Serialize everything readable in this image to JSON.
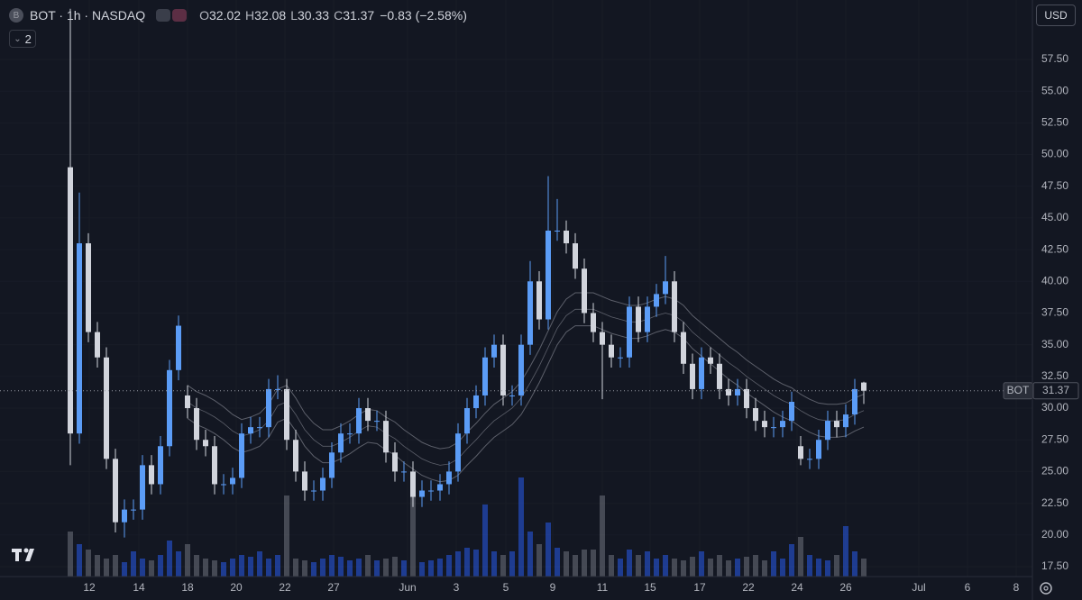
{
  "chart_data": {
    "type": "candlestick",
    "title": "BOT · 1h · NASDAQ",
    "logo": "B",
    "indicators": "2",
    "currency": "USD",
    "ohlc_labels": [
      "O",
      "H",
      "L",
      "C"
    ],
    "change": {
      "value": -0.83,
      "label": "−0.83"
    },
    "change_pct": {
      "value": -2.58,
      "label": "(−2.58%)"
    },
    "price_tag": "BOT",
    "open": [
      49,
      28,
      43,
      36,
      34,
      26,
      21,
      22,
      22,
      25.5,
      24,
      27,
      33,
      31,
      30,
      27.5,
      27,
      24,
      24,
      24.5,
      28,
      28.5,
      28.5,
      31.5,
      31.5,
      27.5,
      25,
      23.5,
      23.5,
      24.5,
      26.5,
      28,
      28,
      30,
      29,
      29,
      26.5,
      25,
      25,
      23,
      23.5,
      23.5,
      24,
      25,
      28,
      30,
      31,
      34,
      35,
      31,
      31,
      35,
      40,
      37,
      44,
      44,
      43,
      41,
      37.5,
      36,
      35,
      34,
      34,
      38,
      36,
      38,
      39,
      40,
      36,
      33.5,
      31.5,
      34,
      33.5,
      31.5,
      31,
      31.5,
      30,
      29,
      28.5,
      28.5,
      29,
      27,
      26,
      26,
      27.5,
      29,
      28.5,
      29.5,
      32.02
    ],
    "high": [
      61.5,
      47,
      43.8,
      36.8,
      34.8,
      26.8,
      22.8,
      22.8,
      26.3,
      26.3,
      27.8,
      33.8,
      37.3,
      31.8,
      30.8,
      28.3,
      27.8,
      24.8,
      25.3,
      28.8,
      29.3,
      29.3,
      32.3,
      32.6,
      32.3,
      28.3,
      25.8,
      24.3,
      25.3,
      27.3,
      28.8,
      28.8,
      30.8,
      30.8,
      29.8,
      29.8,
      27.3,
      25.8,
      25.8,
      24.3,
      24.3,
      24.8,
      25.8,
      28.8,
      30.8,
      31.8,
      34.8,
      35.8,
      35.8,
      31.8,
      35.8,
      41.6,
      40.8,
      48.3,
      46.5,
      44.8,
      43.8,
      41.8,
      38.3,
      36.8,
      35.8,
      34.8,
      38.8,
      38.8,
      38.8,
      39.8,
      42,
      40.8,
      36.8,
      34.3,
      34.8,
      34.8,
      34.3,
      32.3,
      32.3,
      32.3,
      30.8,
      29.8,
      29.3,
      29.8,
      31.3,
      27.8,
      26.8,
      28.3,
      29.8,
      29.8,
      30.3,
      32.3,
      32.08
    ],
    "low": [
      25.5,
      27.2,
      35.2,
      33.2,
      25.2,
      20.2,
      19.8,
      21.2,
      21.2,
      23.2,
      23.2,
      26.2,
      32.2,
      29.2,
      26.7,
      26.2,
      23.2,
      23.2,
      23.2,
      23.7,
      27.2,
      27.7,
      27.7,
      30.7,
      26.7,
      24.2,
      22.7,
      22.7,
      22.7,
      23.7,
      25.7,
      27.2,
      27.2,
      28.2,
      28.2,
      25.7,
      24.2,
      24.2,
      22.2,
      22.2,
      22.7,
      22.7,
      23.2,
      24.2,
      27.2,
      29.2,
      30.2,
      33.2,
      30.2,
      30.2,
      30.2,
      34.2,
      36.2,
      36.2,
      43.2,
      42.2,
      40.2,
      36.7,
      35.2,
      30.7,
      33.2,
      33.2,
      33.2,
      35.2,
      35.2,
      37.2,
      38.2,
      35.2,
      32.7,
      30.7,
      30.7,
      32.7,
      30.7,
      30.2,
      30.2,
      29.2,
      28.2,
      27.7,
      27.7,
      27.7,
      28.2,
      25.5,
      25.2,
      25.2,
      26.7,
      27.7,
      27.7,
      28.7,
      30.33
    ],
    "close": [
      28,
      43,
      36,
      34,
      26,
      21,
      22,
      22,
      25.5,
      24,
      27,
      33,
      36.5,
      30,
      27.5,
      27,
      24,
      24,
      24.5,
      28,
      28.5,
      28.5,
      31.5,
      31.5,
      27.5,
      25,
      23.5,
      23.5,
      24.5,
      26.5,
      28,
      28,
      30,
      29,
      29,
      26.5,
      25,
      25,
      23,
      23.5,
      23.5,
      24,
      25,
      28,
      30,
      31,
      34,
      35,
      31,
      31,
      35,
      40,
      37,
      44,
      44,
      43,
      41,
      37.5,
      36,
      35,
      34,
      34,
      38,
      36,
      38,
      39,
      40,
      36,
      33.5,
      31.5,
      34,
      33.5,
      31.5,
      31,
      31.5,
      30,
      29,
      28.5,
      28.5,
      29,
      30.5,
      26,
      26,
      27.5,
      29,
      28.5,
      29.5,
      31.5,
      31.37
    ],
    "volume": [
      25,
      18,
      15,
      12,
      10,
      12,
      8,
      14,
      10,
      9,
      12,
      20,
      14,
      18,
      12,
      10,
      9,
      8,
      10,
      12,
      11,
      14,
      10,
      12,
      45,
      10,
      9,
      8,
      10,
      12,
      11,
      9,
      10,
      12,
      9,
      10,
      11,
      9,
      50,
      8,
      9,
      10,
      12,
      14,
      16,
      15,
      40,
      14,
      12,
      14,
      55,
      25,
      18,
      30,
      16,
      14,
      12,
      15,
      15,
      45,
      12,
      10,
      15,
      12,
      14,
      10,
      12,
      10,
      9,
      11,
      14,
      10,
      12,
      9,
      10,
      11,
      12,
      9,
      14,
      10,
      18,
      22,
      12,
      10,
      9,
      12,
      28,
      14,
      10
    ],
    "y2lim": [
      0,
      100
    ],
    "envelope": {
      "band": 1.3,
      "values": [
        null,
        null,
        null,
        null,
        null,
        null,
        null,
        null,
        null,
        null,
        null,
        null,
        null,
        30.5,
        30,
        29.7,
        29.3,
        28.8,
        28.2,
        27.8,
        28,
        28.3,
        29,
        30.2,
        30.5,
        29.5,
        28.3,
        27.5,
        27,
        27,
        27.3,
        27.7,
        28.2,
        28.6,
        28.5,
        28,
        27.6,
        27,
        26.5,
        26,
        25.7,
        25.5,
        25.6,
        26,
        26.8,
        27.5,
        28.3,
        29,
        29.5,
        30,
        30.8,
        32,
        33.3,
        34.8,
        36.3,
        37.3,
        37.8,
        37.8,
        37.8,
        37.5,
        37.2,
        37,
        36.8,
        36.8,
        37,
        37.3,
        37.5,
        37.3,
        36.8,
        36,
        35.4,
        34.8,
        34.2,
        33.6,
        33.1,
        32.5,
        32,
        31.5,
        31,
        30.6,
        30.3,
        29.8,
        29.4,
        29.1,
        29,
        29,
        29.1,
        29.5,
        29.8
      ]
    },
    "colors": {
      "background": "#131722",
      "up": "#5b9cf6",
      "down": "#d1d4dc",
      "volume_up": "#2962ff",
      "volume_down": "#787b86",
      "envelope": "#5d606b",
      "grid": "#181c27",
      "price_line": "#9598a1"
    },
    "grid": true,
    "price_line": true,
    "xlim": [
      -7.8,
      106.7
    ],
    "xticks": [
      {
        "value": 2.1,
        "label": "12"
      },
      {
        "value": 7.6,
        "label": "14"
      },
      {
        "value": 13,
        "label": "18"
      },
      {
        "value": 18.4,
        "label": "20"
      },
      {
        "value": 23.8,
        "label": "22"
      },
      {
        "value": 29.2,
        "label": "27"
      },
      {
        "value": 37.4,
        "label": "Jun"
      },
      {
        "value": 42.8,
        "label": "3"
      },
      {
        "value": 48.3,
        "label": "5"
      },
      {
        "value": 53.5,
        "label": "9"
      },
      {
        "value": 59,
        "label": "11"
      },
      {
        "value": 64.3,
        "label": "15"
      },
      {
        "value": 69.8,
        "label": "17"
      },
      {
        "value": 75.2,
        "label": "22"
      },
      {
        "value": 80.6,
        "label": "24"
      },
      {
        "value": 86,
        "label": "26"
      },
      {
        "value": 94.1,
        "label": "Jul"
      },
      {
        "value": 99.5,
        "label": "6"
      },
      {
        "value": 104.9,
        "label": "8"
      }
    ],
    "ylim": [
      16.36,
      62.19
    ],
    "yticks": [
      {
        "value": 17.5,
        "label": "17.50"
      },
      {
        "value": 20,
        "label": "20.00"
      },
      {
        "value": 22.5,
        "label": "22.50"
      },
      {
        "value": 25,
        "label": "25.00"
      },
      {
        "value": 27.5,
        "label": "27.50"
      },
      {
        "value": 30,
        "label": "30.00"
      },
      {
        "value": 32.5,
        "label": "32.50"
      },
      {
        "value": 35,
        "label": "35.00"
      },
      {
        "value": 37.5,
        "label": "37.50"
      },
      {
        "value": 40,
        "label": "40.00"
      },
      {
        "value": 42.5,
        "label": "42.50"
      },
      {
        "value": 45,
        "label": "45.00"
      },
      {
        "value": 47.5,
        "label": "47.50"
      },
      {
        "value": 50,
        "label": "50.00"
      },
      {
        "value": 52.5,
        "label": "52.50"
      },
      {
        "value": 55,
        "label": "55.00"
      },
      {
        "value": 57.5,
        "label": "57.50"
      }
    ]
  }
}
